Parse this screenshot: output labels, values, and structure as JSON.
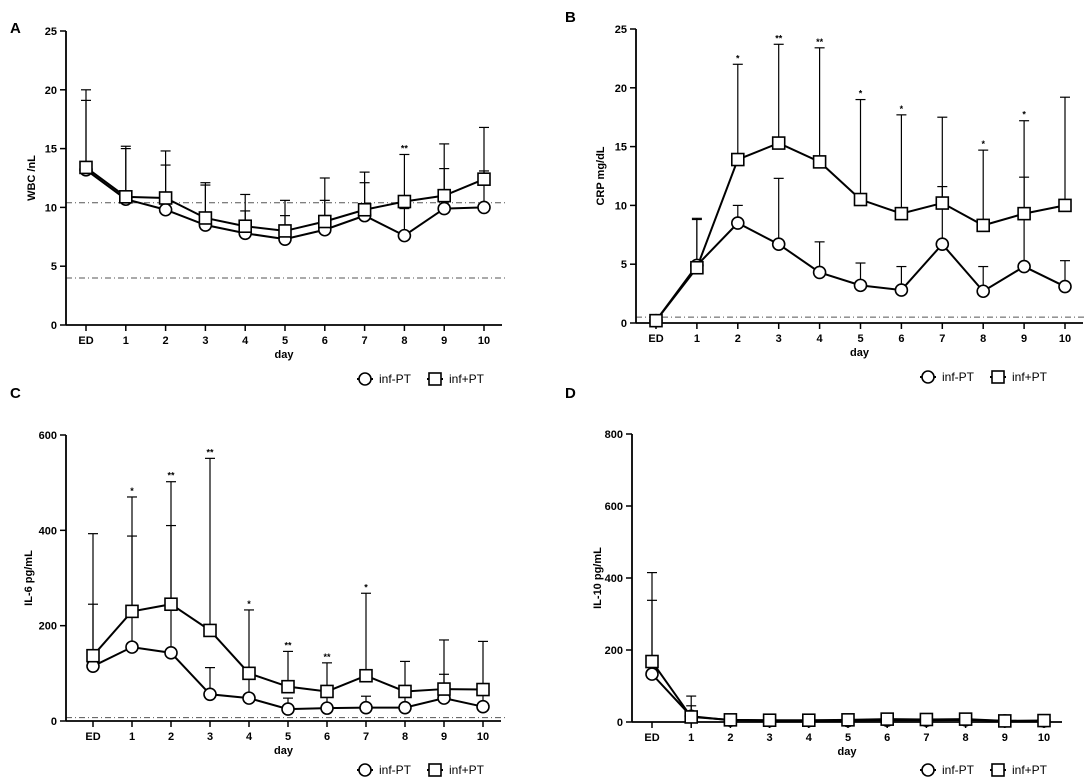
{
  "chart_data": [
    {
      "type": "line",
      "panel": "A",
      "title": "",
      "xlabel": "day",
      "ylabel": "WBC /nL",
      "categories": [
        "ED",
        "1",
        "2",
        "3",
        "4",
        "5",
        "6",
        "7",
        "8",
        "9",
        "10"
      ],
      "ylim": [
        0,
        25
      ],
      "yticks": [
        0,
        5,
        10,
        15,
        20,
        25
      ],
      "ref_lines": [
        4,
        10.4
      ],
      "legend": [
        "inf-PT",
        "inf+PT"
      ],
      "series": [
        {
          "name": "inf-PT",
          "marker": "circle",
          "values": [
            13.2,
            10.7,
            9.8,
            8.5,
            7.8,
            7.3,
            8.1,
            9.3,
            7.6,
            9.9,
            10.0
          ],
          "error_upper": [
            19.1,
            15.0,
            13.6,
            11.9,
            9.7,
            9.3,
            10.6,
            12.1,
            9.9,
            13.3,
            13.1
          ]
        },
        {
          "name": "inf+PT",
          "marker": "square",
          "values": [
            13.4,
            10.9,
            10.8,
            9.1,
            8.4,
            8.0,
            8.8,
            9.8,
            10.5,
            11.0,
            12.4
          ],
          "error_upper": [
            20.0,
            15.2,
            14.8,
            12.1,
            11.1,
            10.6,
            12.5,
            13.0,
            14.5,
            15.4,
            16.8
          ]
        }
      ],
      "significance": [
        {
          "category": "8",
          "label": "**"
        }
      ]
    },
    {
      "type": "line",
      "panel": "B",
      "title": "",
      "xlabel": "day",
      "ylabel": "CRP mg/dL",
      "categories": [
        "ED",
        "1",
        "2",
        "3",
        "4",
        "5",
        "6",
        "7",
        "8",
        "9",
        "10"
      ],
      "ylim": [
        0,
        25
      ],
      "yticks": [
        0,
        5,
        10,
        15,
        20,
        25
      ],
      "ref_lines": [
        0.5
      ],
      "legend": [
        "inf-PT",
        "inf+PT"
      ],
      "series": [
        {
          "name": "inf-PT",
          "marker": "circle",
          "values": [
            0.2,
            4.9,
            8.5,
            6.7,
            4.3,
            3.2,
            2.8,
            6.7,
            2.7,
            4.8,
            3.1
          ],
          "error_upper": [
            0.4,
            8.8,
            10.0,
            12.3,
            6.9,
            5.1,
            4.8,
            11.6,
            4.8,
            12.4,
            5.3
          ]
        },
        {
          "name": "inf+PT",
          "marker": "square",
          "values": [
            0.2,
            4.7,
            13.9,
            15.3,
            13.7,
            10.5,
            9.3,
            10.2,
            8.3,
            9.3,
            10.0
          ],
          "error_upper": [
            0.4,
            8.9,
            22.0,
            23.7,
            23.4,
            19.0,
            17.7,
            17.5,
            14.7,
            17.2,
            19.2
          ]
        }
      ],
      "significance": [
        {
          "category": "2",
          "label": "*"
        },
        {
          "category": "3",
          "label": "**"
        },
        {
          "category": "4",
          "label": "**"
        },
        {
          "category": "5",
          "label": "*"
        },
        {
          "category": "6",
          "label": "*"
        },
        {
          "category": "8",
          "label": "*"
        },
        {
          "category": "9",
          "label": "*"
        }
      ]
    },
    {
      "type": "line",
      "panel": "C",
      "title": "",
      "xlabel": "day",
      "ylabel": "IL-6 pg/mL",
      "categories": [
        "ED",
        "1",
        "2",
        "3",
        "4",
        "5",
        "6",
        "7",
        "8",
        "9",
        "10"
      ],
      "ylim": [
        0,
        600
      ],
      "yticks": [
        0,
        200,
        400,
        600
      ],
      "ref_lines": [
        7
      ],
      "legend": [
        "inf-PT",
        "inf+PT"
      ],
      "series": [
        {
          "name": "inf-PT",
          "marker": "circle",
          "values": [
            115,
            155,
            143,
            56,
            48,
            25,
            27,
            28,
            28,
            48,
            30
          ],
          "error_upper": [
            245,
            388,
            410,
            112,
            95,
            48,
            55,
            52,
            55,
            98,
            65
          ]
        },
        {
          "name": "inf+PT",
          "marker": "square",
          "values": [
            137,
            230,
            245,
            190,
            100,
            72,
            62,
            95,
            62,
            67,
            66
          ],
          "error_upper": [
            393,
            470,
            502,
            551,
            233,
            146,
            122,
            268,
            125,
            170,
            167
          ]
        }
      ],
      "significance": [
        {
          "category": "1",
          "label": "*"
        },
        {
          "category": "2",
          "label": "**"
        },
        {
          "category": "3",
          "label": "**"
        },
        {
          "category": "4",
          "label": "*"
        },
        {
          "category": "5",
          "label": "**"
        },
        {
          "category": "6",
          "label": "**"
        },
        {
          "category": "7",
          "label": "*"
        }
      ]
    },
    {
      "type": "line",
      "panel": "D",
      "title": "",
      "xlabel": "day",
      "ylabel": "IL-10 pg/mL",
      "categories": [
        "ED",
        "1",
        "2",
        "3",
        "4",
        "5",
        "6",
        "7",
        "8",
        "9",
        "10"
      ],
      "ylim": [
        0,
        800
      ],
      "yticks": [
        0,
        200,
        400,
        600,
        800
      ],
      "ref_lines": [],
      "legend": [
        "inf-PT",
        "inf+PT"
      ],
      "series": [
        {
          "name": "inf-PT",
          "marker": "circle",
          "values": [
            133,
            16,
            5,
            4,
            4,
            4,
            5,
            5,
            6,
            3,
            3
          ],
          "error_upper": [
            338,
            45,
            12,
            10,
            10,
            12,
            14,
            13,
            15,
            8,
            8
          ]
        },
        {
          "name": "inf+PT",
          "marker": "square",
          "values": [
            168,
            14,
            6,
            5,
            5,
            6,
            8,
            7,
            8,
            3,
            4
          ],
          "error_upper": [
            415,
            72,
            16,
            12,
            12,
            14,
            18,
            16,
            18,
            8,
            9
          ]
        }
      ],
      "significance": []
    }
  ]
}
